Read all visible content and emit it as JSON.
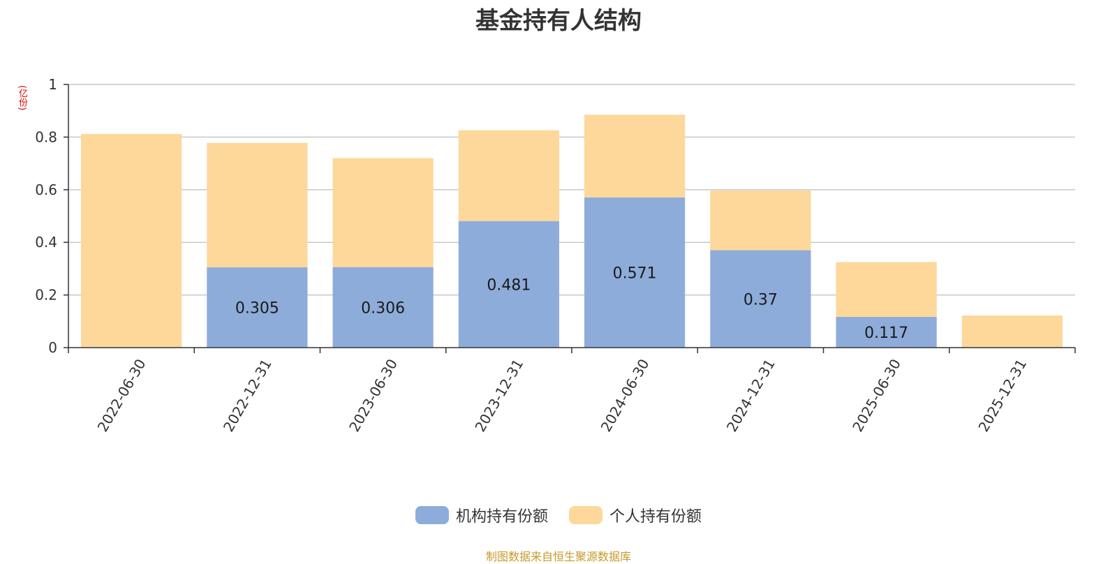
{
  "chart_data": {
    "type": "bar",
    "stacked": true,
    "title": "基金持有人结构",
    "ylabel": "(亿份)",
    "xlabel": "",
    "ylim": [
      0,
      1
    ],
    "yticks": [
      "0",
      "0.2",
      "0.4",
      "0.6",
      "0.8",
      "1"
    ],
    "grid": true,
    "legend_position": "bottom",
    "categories": [
      "2022-06-30",
      "2022-12-31",
      "2023-06-30",
      "2023-12-31",
      "2024-06-30",
      "2024-12-31",
      "2025-06-30",
      "2025-12-31"
    ],
    "series": [
      {
        "name": "机构持有份额",
        "color": "#8eacda",
        "values": [
          0,
          0.305,
          0.306,
          0.481,
          0.571,
          0.37,
          0.117,
          0
        ],
        "labels": [
          "",
          "0.305",
          "0.306",
          "0.481",
          "0.571",
          "0.37",
          "0.117",
          ""
        ]
      },
      {
        "name": "个人持有份额",
        "color": "#fdd89a",
        "values": [
          0.812,
          0.473,
          0.414,
          0.345,
          0.314,
          0.227,
          0.208,
          0.122
        ],
        "labels": [
          "",
          "",
          "",
          "",
          "",
          "",
          "",
          ""
        ]
      }
    ]
  },
  "footer": "制图数据来自恒生聚源数据库"
}
